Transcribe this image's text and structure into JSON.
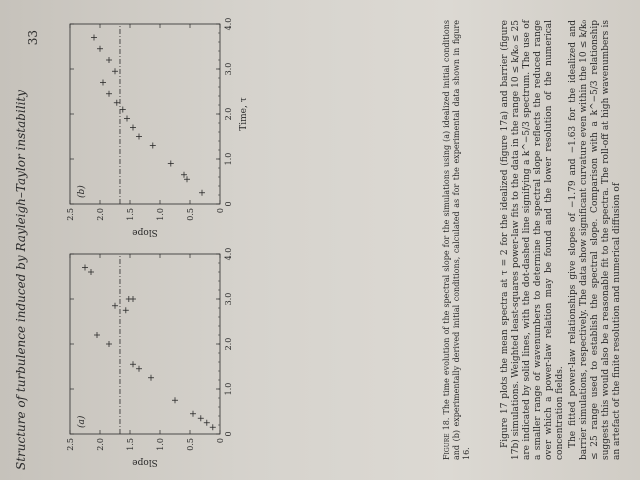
{
  "header": {
    "running_title": "Structure of turbulence induced by Rayleigh–Taylor instability",
    "page_number": "33"
  },
  "chart_data": [
    {
      "type": "scatter",
      "panel_label": "(a)",
      "ylabel": "Slope",
      "xlabel": "",
      "xlim": [
        0,
        4.0
      ],
      "ylim": [
        0,
        2.5
      ],
      "x_ticks": [
        "0",
        "1.0",
        "2.0",
        "3.0",
        "4.0"
      ],
      "y_ticks": [
        "0",
        "0.5",
        "1.0",
        "1.5",
        "2.0",
        "2.5"
      ],
      "reference_line_y": 1.667,
      "points": [
        {
          "x": 0.15,
          "y": 0.12
        },
        {
          "x": 0.25,
          "y": 0.22
        },
        {
          "x": 0.35,
          "y": 0.32
        },
        {
          "x": 0.45,
          "y": 0.45
        },
        {
          "x": 0.75,
          "y": 0.75
        },
        {
          "x": 1.25,
          "y": 1.15
        },
        {
          "x": 1.45,
          "y": 1.35
        },
        {
          "x": 1.55,
          "y": 1.45
        },
        {
          "x": 2.0,
          "y": 1.85
        },
        {
          "x": 2.2,
          "y": 2.05
        },
        {
          "x": 2.75,
          "y": 1.57
        },
        {
          "x": 2.85,
          "y": 1.75
        },
        {
          "x": 3.0,
          "y": 1.45
        },
        {
          "x": 3.0,
          "y": 1.52
        },
        {
          "x": 3.6,
          "y": 2.15
        },
        {
          "x": 3.7,
          "y": 2.25
        }
      ]
    },
    {
      "type": "scatter",
      "panel_label": "(b)",
      "ylabel": "Slope",
      "xlabel": "Time, τ",
      "xlim": [
        0,
        4.0
      ],
      "ylim": [
        0,
        2.5
      ],
      "x_ticks": [
        "0",
        "1.0",
        "2.0",
        "3.0",
        "4.0"
      ],
      "y_ticks": [
        "0",
        "0.5",
        "1.0",
        "1.5",
        "2.0",
        "2.5"
      ],
      "reference_line_y": 1.667,
      "points": [
        {
          "x": 0.25,
          "y": 0.3
        },
        {
          "x": 0.55,
          "y": 0.55
        },
        {
          "x": 0.65,
          "y": 0.6
        },
        {
          "x": 0.9,
          "y": 0.82
        },
        {
          "x": 1.3,
          "y": 1.12
        },
        {
          "x": 1.5,
          "y": 1.35
        },
        {
          "x": 1.7,
          "y": 1.45
        },
        {
          "x": 1.9,
          "y": 1.55
        },
        {
          "x": 2.1,
          "y": 1.62
        },
        {
          "x": 2.25,
          "y": 1.72
        },
        {
          "x": 2.45,
          "y": 1.85
        },
        {
          "x": 2.7,
          "y": 1.95
        },
        {
          "x": 2.95,
          "y": 1.75
        },
        {
          "x": 3.2,
          "y": 1.85
        },
        {
          "x": 3.45,
          "y": 2.0
        },
        {
          "x": 3.7,
          "y": 2.1
        }
      ]
    }
  ],
  "caption": {
    "label": "Figure 18.",
    "text": "The time evolution of the spectral slope for the simulations using (a) idealized initial conditions and (b) experimentally derived initial conditions, calculated as for the experimental data shown in figure 16."
  },
  "body": {
    "paragraphs": [
      "Figure 17 plots the mean spectra at τ = 2 for the idealized (figure 17a) and barrier (figure 17b) simulations. Weighted least-squares power-law fits to the data in the range 10 ≤ k/k₀ ≤ 25 are indicated by solid lines, with the dot-dashed line signifying a k^−5/3 spectrum. The use of a smaller range of wavenumbers to determine the spectral slope reflects the reduced range over which a power-law relation may be found and the lower resolution of the numerical concentration fields.",
      "The fitted power-law relationships give slopes of −1.79 and −1.63 for the idealized and barrier simulations, respectively. The data show significant curvature even within the 10 ≤ k/k₀ ≤ 25 range used to establish the spectral slope. Comparison with a k^−5/3 relationship suggests this would also be a reasonable fit to the spectra. The roll-off at high wavenumbers is an artefact of the finite resolution and numerical diffusion of"
    ]
  }
}
